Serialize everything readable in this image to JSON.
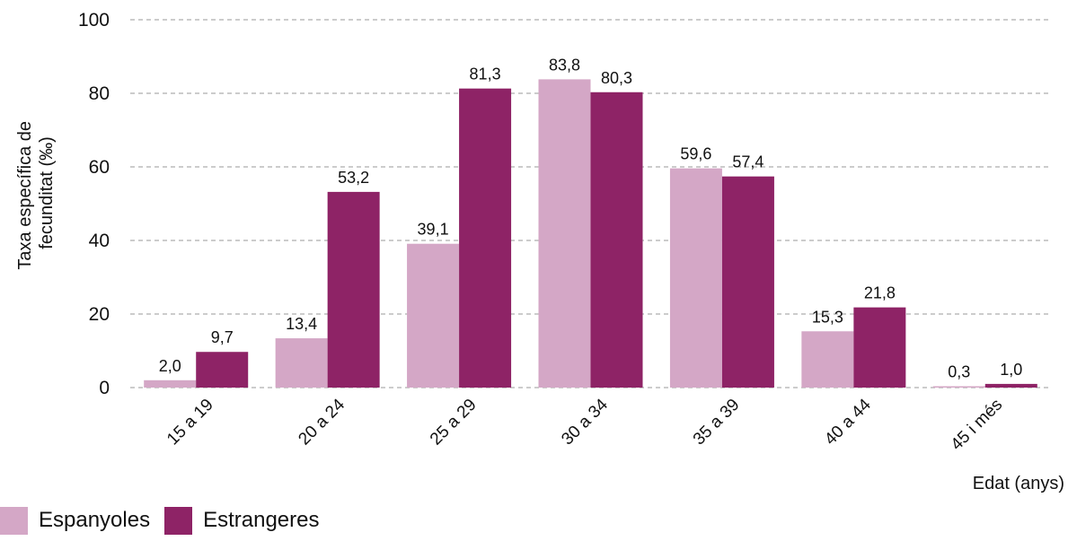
{
  "chart_data": {
    "type": "bar",
    "categories": [
      "15 a 19",
      "20 a 24",
      "25 a 29",
      "30 a 34",
      "35 a 39",
      "40 a 44",
      "45 i més"
    ],
    "series": [
      {
        "name": "Espanyoles",
        "values": [
          2.0,
          13.4,
          39.1,
          83.8,
          59.6,
          15.3,
          0.3
        ],
        "labels": [
          "2,0",
          "13,4",
          "39,1",
          "83,8",
          "59,6",
          "15,3",
          "0,3"
        ],
        "color": "#d4a7c6"
      },
      {
        "name": "Estrangeres",
        "values": [
          9.7,
          53.2,
          81.3,
          80.3,
          57.4,
          21.8,
          1.0
        ],
        "labels": [
          "9,7",
          "53,2",
          "81,3",
          "80,3",
          "57,4",
          "21,8",
          "1,0"
        ],
        "color": "#8e2366"
      }
    ],
    "ylabel": [
      "Taxa específica de",
      "fecunditat (‰)"
    ],
    "xlabel": "Edat (anys)",
    "ylim": [
      0,
      100
    ],
    "yticks": [
      0,
      20,
      40,
      60,
      80,
      100
    ],
    "grid": true,
    "gridline_color": "#9a9a9a",
    "legend_position": "bottom-left"
  }
}
